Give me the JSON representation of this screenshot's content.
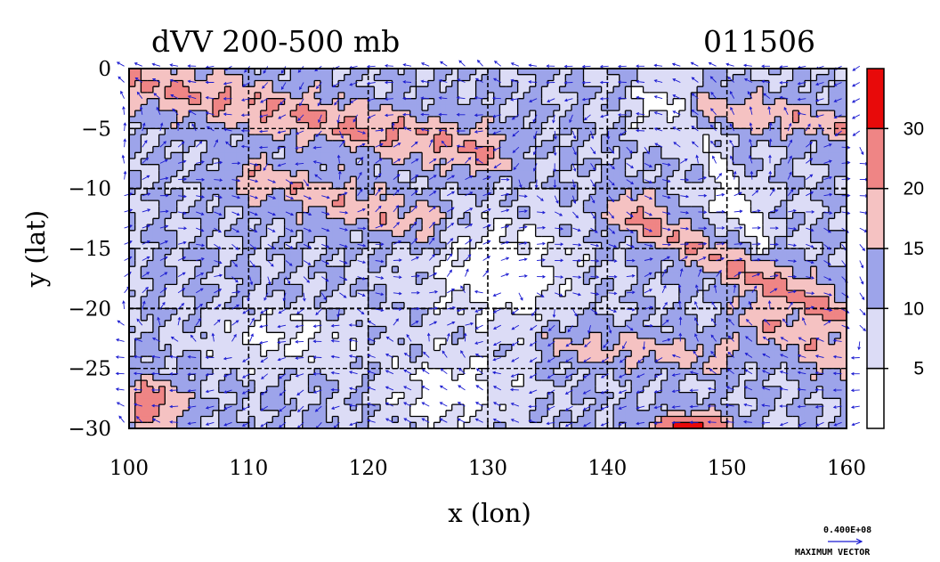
{
  "chart_data": {
    "type": "heatmap",
    "title": "dVV 200-500 mb",
    "date_label": "011506",
    "xlabel": "x (lon)",
    "ylabel": "y (lat)",
    "xlim": [
      100,
      160
    ],
    "ylim": [
      -30,
      0
    ],
    "x_ticks": [
      "100",
      "110",
      "120",
      "130",
      "140",
      "150",
      "160"
    ],
    "y_ticks": [
      "0",
      "−5",
      "−10",
      "−15",
      "−20",
      "−25",
      "−30"
    ],
    "grid": true,
    "colorbar": {
      "levels": [
        0,
        5,
        10,
        15,
        20,
        30,
        35
      ],
      "tick_labels": [
        "5",
        "10",
        "15",
        "20",
        "30"
      ],
      "colors": [
        "#ffffff",
        "#dcdcf6",
        "#9da4ea",
        "#f5c2c2",
        "#ef8585",
        "#e80a0a"
      ]
    },
    "vector_reference": {
      "value": "0.400E+08",
      "label": "MAXIMUM VECTOR"
    },
    "field_max": 35,
    "field_min": 0
  },
  "colors": {
    "vector": "#1a1ad0",
    "contour": "#000000"
  }
}
